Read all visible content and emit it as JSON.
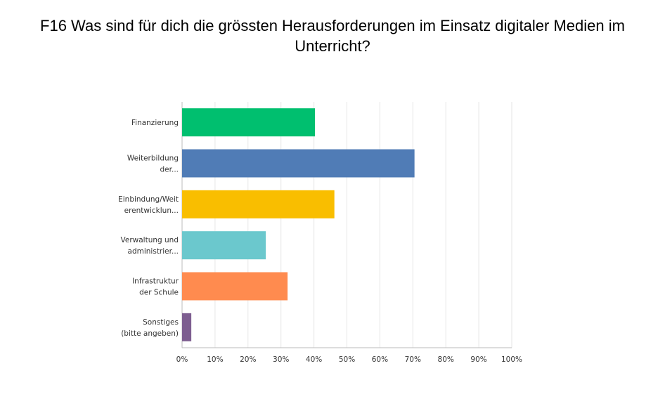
{
  "chart_data": {
    "type": "bar",
    "orientation": "horizontal",
    "title": "F16 Was sind für dich die grössten Herausforderungen im Einsatz digitaler Medien im Unterricht?",
    "categories": [
      [
        "Finanzierung"
      ],
      [
        "Weiterbildung",
        "der..."
      ],
      [
        "Einbindung/Weit",
        "erentwicklun..."
      ],
      [
        "Verwaltung und",
        "administrier..."
      ],
      [
        "Infrastruktur",
        "der Schule"
      ],
      [
        "Sonstiges",
        "(bitte angeben)"
      ]
    ],
    "values": [
      40.3,
      70.5,
      46.2,
      25.4,
      32.0,
      2.8
    ],
    "colors": [
      "#00bf6f",
      "#507cb6",
      "#f9be00",
      "#6bc8cd",
      "#ff8b4f",
      "#7d5e90"
    ],
    "xlim": [
      0,
      100
    ],
    "x_ticks": [
      "0%",
      "10%",
      "20%",
      "30%",
      "40%",
      "50%",
      "60%",
      "70%",
      "80%",
      "90%",
      "100%"
    ],
    "grid": true,
    "xlabel": "",
    "ylabel": ""
  }
}
